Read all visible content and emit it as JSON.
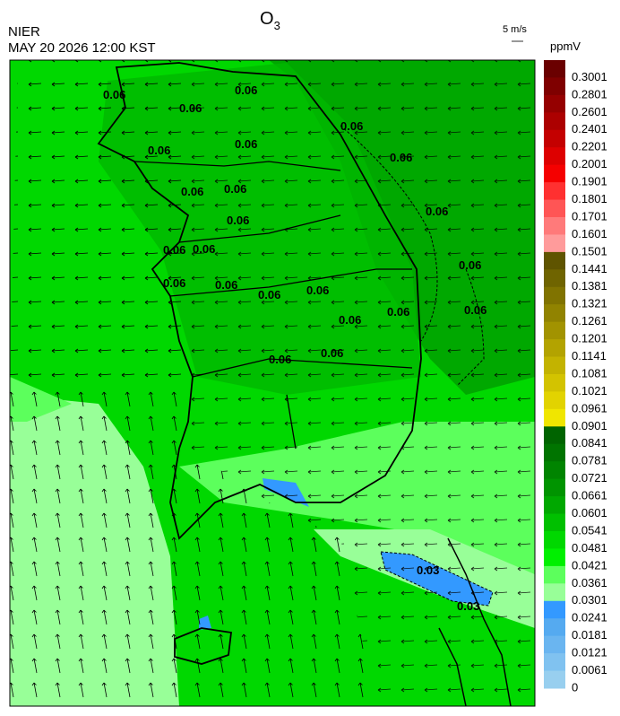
{
  "header": {
    "title": "O",
    "title_sub": "3",
    "agency": "NIER",
    "datetime": "MAY 20 2026 12:00 KST",
    "wind_scale": "5 m/s"
  },
  "colorbar": {
    "unit": "ppmV",
    "labels": [
      "0.3001",
      "0.2801",
      "0.2601",
      "0.2401",
      "0.2201",
      "0.2001",
      "0.1901",
      "0.1801",
      "0.1701",
      "0.1601",
      "0.1501",
      "0.1441",
      "0.1381",
      "0.1321",
      "0.1261",
      "0.1201",
      "0.1141",
      "0.1081",
      "0.1021",
      "0.0961",
      "0.0901",
      "0.0841",
      "0.0781",
      "0.0721",
      "0.0661",
      "0.0601",
      "0.0541",
      "0.0481",
      "0.0421",
      "0.0361",
      "0.0301",
      "0.0241",
      "0.0181",
      "0.0121",
      "0.0061",
      "0"
    ],
    "colors": [
      "#6a0000",
      "#7f0000",
      "#950000",
      "#ac0000",
      "#c40000",
      "#dd0000",
      "#f50000",
      "#ff3030",
      "#ff5555",
      "#ff7a7a",
      "#ff9b9b",
      "#5f5400",
      "#6f6400",
      "#807300",
      "#918300",
      "#a29300",
      "#b3a300",
      "#c3b300",
      "#d3c300",
      "#e2d300",
      "#f0e600",
      "#006400",
      "#007400",
      "#008400",
      "#009400",
      "#00a800",
      "#00c000",
      "#00d800",
      "#00f000",
      "#5cff5c",
      "#98ff98",
      "#3399ff",
      "#55aaf0",
      "#6ab5f0",
      "#80c2f0",
      "#98cfef"
    ]
  },
  "contours": {
    "labels": [
      "0.06",
      "0.06",
      "0.06",
      "0.06",
      "0.06",
      "0.06",
      "0.06",
      "0.06",
      "0.06",
      "0.06",
      "0.06",
      "0.06",
      "0.06",
      "0.06",
      "0.06",
      "0.06",
      "0.06",
      "0.06",
      "0.06",
      "0.06",
      "0.06",
      "0.06",
      "0.06",
      "0.03",
      "0.03"
    ]
  }
}
